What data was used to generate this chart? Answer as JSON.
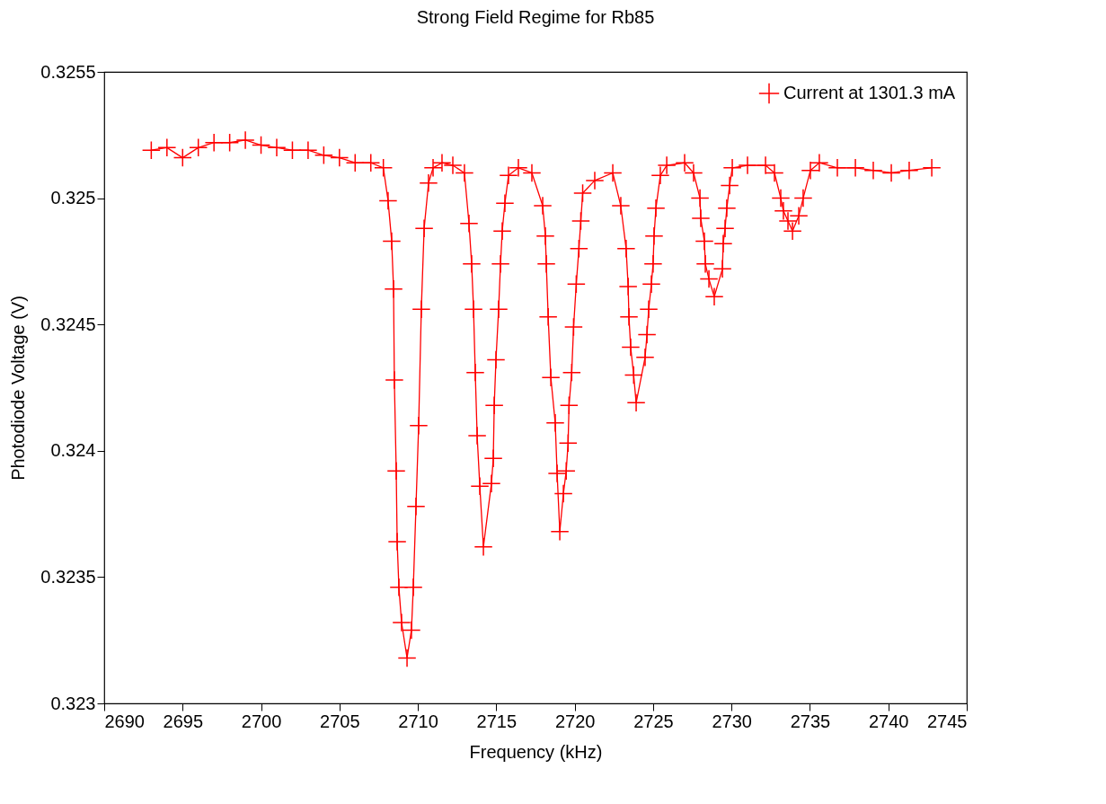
{
  "chart_data": {
    "type": "line",
    "title": "Strong Field Regime for Rb85",
    "xlabel": "Frequency (kHz)",
    "ylabel": "Photodiode Voltage (V)",
    "xlim": [
      2690,
      2745
    ],
    "xticks": [
      2690,
      2695,
      2700,
      2705,
      2710,
      2715,
      2720,
      2725,
      2730,
      2735,
      2740,
      2745
    ],
    "ylim": [
      0.323,
      0.3255
    ],
    "yticks": [
      0.323,
      0.3235,
      0.324,
      0.3245,
      0.325,
      0.3255
    ],
    "grid": false,
    "legend": "top right",
    "marker": "cross",
    "line_style": "solid",
    "series": [
      {
        "name": "Current at 1301.3 mA",
        "color": "#ff0000",
        "x": [
          2693,
          2694,
          2695,
          2696,
          2697,
          2698,
          2699,
          2700,
          2701,
          2702,
          2703,
          2704,
          2705,
          2706,
          2707,
          2707.8,
          2708.1,
          2708.33,
          2708.45,
          2708.5,
          2708.62,
          2708.68,
          2708.79,
          2708.96,
          2709.31,
          2709.59,
          2709.71,
          2709.88,
          2710.05,
          2710.22,
          2710.4,
          2710.68,
          2710.97,
          2711.54,
          2712.23,
          2712.97,
          2713.26,
          2713.43,
          2713.55,
          2713.66,
          2713.78,
          2713.95,
          2714.18,
          2714.69,
          2714.81,
          2714.87,
          2714.98,
          2715.15,
          2715.27,
          2715.38,
          2715.55,
          2715.78,
          2716.41,
          2717.27,
          2717.96,
          2718.13,
          2718.19,
          2718.31,
          2718.48,
          2718.76,
          2718.88,
          2719.05,
          2719.28,
          2719.46,
          2719.58,
          2719.64,
          2719.81,
          2719.93,
          2720.1,
          2720.27,
          2720.39,
          2720.51,
          2721.28,
          2722.43,
          2722.94,
          2723.28,
          2723.41,
          2723.46,
          2723.57,
          2723.76,
          2723.92,
          2724.49,
          2724.61,
          2724.72,
          2724.89,
          2725,
          2725.06,
          2725.18,
          2725.46,
          2725.87,
          2727.01,
          2727.58,
          2727.99,
          2728.04,
          2728.27,
          2728.33,
          2728.56,
          2728.9,
          2729.42,
          2729.47,
          2729.59,
          2729.7,
          2729.88,
          2730.05,
          2731.02,
          2732.17,
          2732.74,
          2733.14,
          2733.31,
          2733.6,
          2733.89,
          2734.29,
          2734.57,
          2735.03,
          2735.6,
          2736.75,
          2737.9,
          2739.04,
          2740.19,
          2741.33,
          2742.77
        ],
        "values": [
          0.32519,
          0.3252,
          0.32516,
          0.3252,
          0.32522,
          0.32522,
          0.32523,
          0.32521,
          0.3252,
          0.32519,
          0.32519,
          0.32517,
          0.32516,
          0.32514,
          0.32514,
          0.32512,
          0.32499,
          0.32483,
          0.32464,
          0.32428,
          0.32392,
          0.32364,
          0.32346,
          0.32332,
          0.32318,
          0.32329,
          0.32346,
          0.32378,
          0.3241,
          0.32456,
          0.32488,
          0.32506,
          0.32512,
          0.32514,
          0.32513,
          0.3251,
          0.3249,
          0.32474,
          0.32456,
          0.32431,
          0.32406,
          0.32386,
          0.32362,
          0.32387,
          0.32397,
          0.32418,
          0.32436,
          0.32456,
          0.32474,
          0.32487,
          0.32498,
          0.32509,
          0.32512,
          0.3251,
          0.32497,
          0.32485,
          0.32474,
          0.32453,
          0.32429,
          0.32411,
          0.32391,
          0.32368,
          0.32383,
          0.32392,
          0.32403,
          0.32418,
          0.32431,
          0.32449,
          0.32466,
          0.3248,
          0.32491,
          0.32502,
          0.32507,
          0.3251,
          0.32497,
          0.3248,
          0.32465,
          0.32453,
          0.32441,
          0.3243,
          0.32419,
          0.32437,
          0.32446,
          0.32456,
          0.32466,
          0.32474,
          0.32485,
          0.32496,
          0.32509,
          0.32513,
          0.32514,
          0.3251,
          0.325,
          0.32492,
          0.32483,
          0.32474,
          0.32468,
          0.32461,
          0.32472,
          0.32482,
          0.32488,
          0.32496,
          0.32505,
          0.32512,
          0.32513,
          0.32513,
          0.3251,
          0.325,
          0.32495,
          0.32491,
          0.32487,
          0.32493,
          0.325,
          0.32511,
          0.32514,
          0.32512,
          0.32512,
          0.32511,
          0.3251,
          0.32511,
          0.32512
        ]
      }
    ]
  }
}
